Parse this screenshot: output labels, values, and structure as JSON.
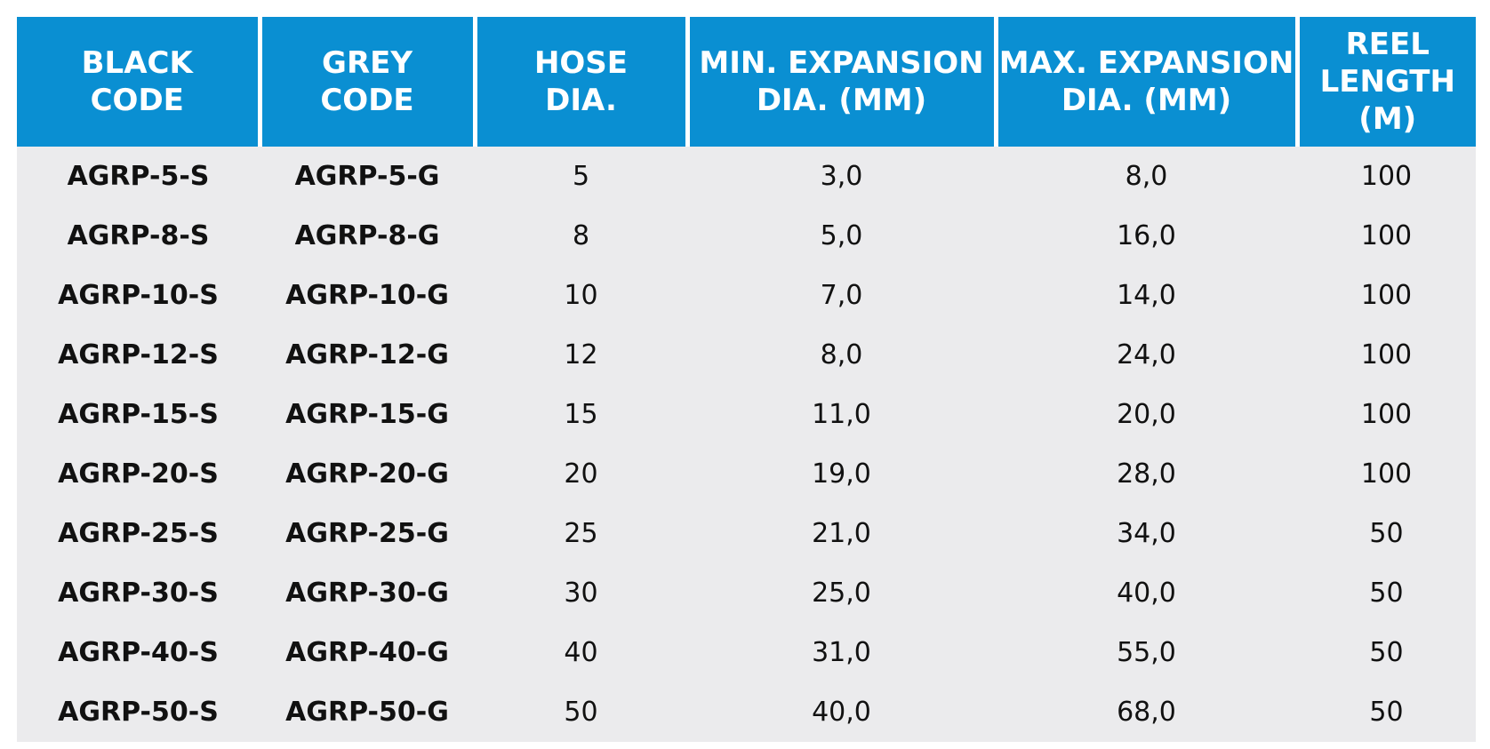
{
  "colors": {
    "header_bg": "#0a8fd2",
    "header_text": "#ffffff",
    "body_bg": "#ebebed",
    "body_text": "#111111"
  },
  "table": {
    "headers": [
      [
        "BLACK",
        "CODE"
      ],
      [
        "GREY",
        "CODE"
      ],
      [
        "HOSE",
        "DIA."
      ],
      [
        "MIN. EXPANSION",
        "DIA. (MM)"
      ],
      [
        "MAX. EXPANSION",
        "DIA. (MM)"
      ],
      [
        "REEL",
        "LENGTH",
        "(M)"
      ]
    ],
    "rows": [
      [
        "AGRP-5-S",
        "AGRP-5-G",
        "5",
        "3,0",
        "8,0",
        "100"
      ],
      [
        "AGRP-8-S",
        "AGRP-8-G",
        "8",
        "5,0",
        "16,0",
        "100"
      ],
      [
        "AGRP-10-S",
        "AGRP-10-G",
        "10",
        "7,0",
        "14,0",
        "100"
      ],
      [
        "AGRP-12-S",
        "AGRP-12-G",
        "12",
        "8,0",
        "24,0",
        "100"
      ],
      [
        "AGRP-15-S",
        "AGRP-15-G",
        "15",
        "11,0",
        "20,0",
        "100"
      ],
      [
        "AGRP-20-S",
        "AGRP-20-G",
        "20",
        "19,0",
        "28,0",
        "100"
      ],
      [
        "AGRP-25-S",
        "AGRP-25-G",
        "25",
        "21,0",
        "34,0",
        "50"
      ],
      [
        "AGRP-30-S",
        "AGRP-30-G",
        "30",
        "25,0",
        "40,0",
        "50"
      ],
      [
        "AGRP-40-S",
        "AGRP-40-G",
        "40",
        "31,0",
        "55,0",
        "50"
      ],
      [
        "AGRP-50-S",
        "AGRP-50-G",
        "50",
        "40,0",
        "68,0",
        "50"
      ]
    ]
  }
}
